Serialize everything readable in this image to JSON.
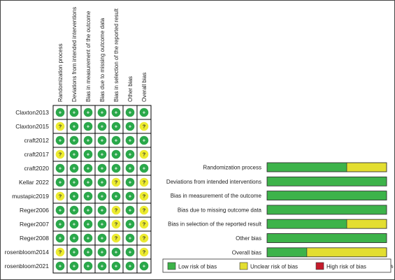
{
  "colors": {
    "low": "#3db34a",
    "unclear": "#e3de30",
    "high": "#c51c2c",
    "dot_low": "#2aa84a",
    "dot_unclear": "#eceb2f"
  },
  "chart_data": [
    {
      "type": "table",
      "columns": [
        "Randomization process",
        "Deviations from intended interventions",
        "Bias in measurement of the outcome",
        "Bias due to missing outcome data",
        "Bias in selection of the reported result",
        "Other bias",
        "Overall bias"
      ],
      "rows": [
        {
          "study": "Claxton2013",
          "cells": [
            "+",
            "+",
            "+",
            "+",
            "+",
            "+",
            "+"
          ],
          "judgments": [
            "low",
            "low",
            "low",
            "low",
            "low",
            "low",
            "low"
          ]
        },
        {
          "study": "Claxton2015",
          "cells": [
            "?",
            "+",
            "+",
            "+",
            "+",
            "+",
            "?"
          ],
          "judgments": [
            "unclear",
            "low",
            "low",
            "low",
            "low",
            "low",
            "unclear"
          ]
        },
        {
          "study": "craft2012",
          "cells": [
            "+",
            "+",
            "+",
            "+",
            "+",
            "+",
            "+"
          ],
          "judgments": [
            "low",
            "low",
            "low",
            "low",
            "low",
            "low",
            "low"
          ]
        },
        {
          "study": "craft2017",
          "cells": [
            "?",
            "+",
            "+",
            "+",
            "+",
            "+",
            "?"
          ],
          "judgments": [
            "unclear",
            "low",
            "low",
            "low",
            "low",
            "low",
            "unclear"
          ]
        },
        {
          "study": "craft2020",
          "cells": [
            "+",
            "+",
            "+",
            "+",
            "+",
            "+",
            "+"
          ],
          "judgments": [
            "low",
            "low",
            "low",
            "low",
            "low",
            "low",
            "low"
          ]
        },
        {
          "study": "Kellar 2022",
          "cells": [
            "+",
            "+",
            "+",
            "+",
            "?",
            "+",
            "?"
          ],
          "judgments": [
            "low",
            "low",
            "low",
            "low",
            "unclear",
            "low",
            "unclear"
          ]
        },
        {
          "study": "mustapic2019",
          "cells": [
            "?",
            "+",
            "+",
            "+",
            "+",
            "+",
            "?"
          ],
          "judgments": [
            "unclear",
            "low",
            "low",
            "low",
            "low",
            "low",
            "unclear"
          ]
        },
        {
          "study": "Reger2006",
          "cells": [
            "+",
            "+",
            "+",
            "+",
            "?",
            "+",
            "?"
          ],
          "judgments": [
            "low",
            "low",
            "low",
            "low",
            "unclear",
            "low",
            "unclear"
          ]
        },
        {
          "study": "Reger2007",
          "cells": [
            "+",
            "+",
            "+",
            "+",
            "?",
            "+",
            "?"
          ],
          "judgments": [
            "low",
            "low",
            "low",
            "low",
            "unclear",
            "low",
            "unclear"
          ]
        },
        {
          "study": "Reger2008",
          "cells": [
            "+",
            "+",
            "+",
            "+",
            "?",
            "+",
            "?"
          ],
          "judgments": [
            "low",
            "low",
            "low",
            "low",
            "unclear",
            "low",
            "unclear"
          ]
        },
        {
          "study": "rosenbloom2014",
          "cells": [
            "?",
            "+",
            "+",
            "+",
            "+",
            "+",
            "?"
          ],
          "judgments": [
            "unclear",
            "low",
            "low",
            "low",
            "low",
            "low",
            "unclear"
          ]
        },
        {
          "study": "rosenbloom2021",
          "cells": [
            "+",
            "+",
            "+",
            "+",
            "+",
            "+",
            "+"
          ],
          "judgments": [
            "low",
            "low",
            "low",
            "low",
            "low",
            "low",
            "low"
          ]
        }
      ]
    },
    {
      "type": "bar",
      "orientation": "horizontal",
      "stacked": true,
      "categories": [
        "Randomization process",
        "Deviations from intended interventions",
        "Bias in measurement of the outcome",
        "Bias due to missing outcome data",
        "Bias in selection of the reported result",
        "Other bias",
        "Overall bias"
      ],
      "series": [
        {
          "name": "Low risk of bias",
          "color_key": "low",
          "values": [
            66.7,
            100,
            100,
            100,
            66.7,
            100,
            33.3
          ]
        },
        {
          "name": "Unclear risk of bias",
          "color_key": "unclear",
          "values": [
            33.3,
            0,
            0,
            0,
            33.3,
            0,
            66.7
          ]
        },
        {
          "name": "High risk of bias",
          "color_key": "high",
          "values": [
            0,
            0,
            0,
            0,
            0,
            0,
            0
          ]
        }
      ],
      "xticks": [
        "0%",
        "25%",
        "50%",
        "75%",
        "100%"
      ],
      "xlim": [
        0,
        100
      ],
      "legend_position": "bottom"
    }
  ]
}
